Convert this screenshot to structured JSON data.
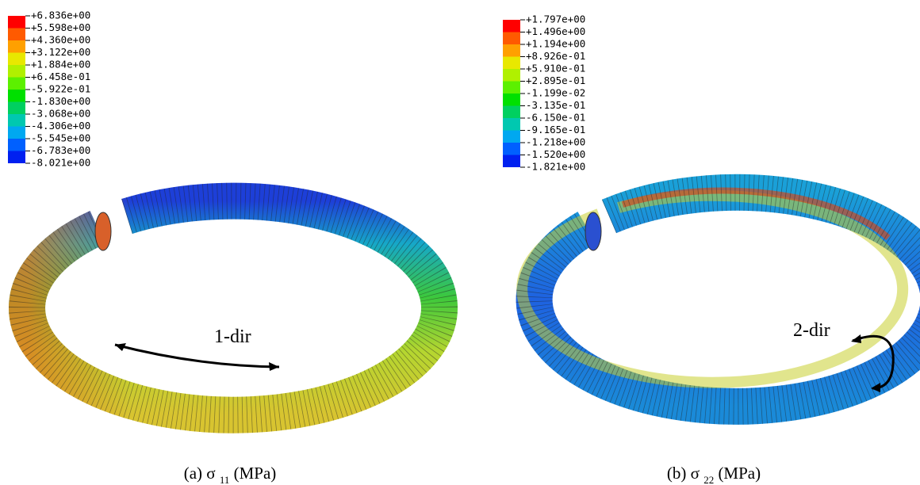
{
  "panels": [
    {
      "legend": [
        "+6.836e+00",
        "+5.598e+00",
        "+4.360e+00",
        "+3.122e+00",
        "+1.884e+00",
        "+6.458e-01",
        "-5.922e-01",
        "-1.830e+00",
        "-3.068e+00",
        "-4.306e+00",
        "-5.545e+00",
        "-6.783e+00",
        "-8.021e+00"
      ],
      "annotation": "1-dir",
      "caption": {
        "prefix": "(a) σ",
        "subscript": "11",
        "suffix": "(MPa)"
      }
    },
    {
      "legend": [
        "+1.797e+00",
        "+1.496e+00",
        "+1.194e+00",
        "+8.926e-01",
        "+5.910e-01",
        "+2.895e-01",
        "-1.199e-02",
        "-3.135e-01",
        "-6.150e-01",
        "-9.165e-01",
        "-1.218e+00",
        "-1.520e+00",
        "-1.821e+00"
      ],
      "annotation": "2-dir",
      "caption": {
        "prefix": "(b) σ",
        "subscript": "22",
        "suffix": "(MPa)"
      }
    }
  ]
}
